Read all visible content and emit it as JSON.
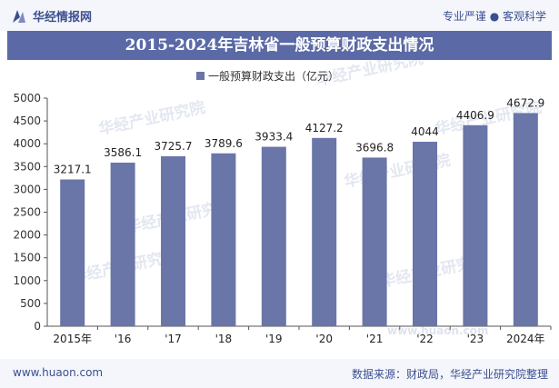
{
  "header": {
    "brand": "华经情报网",
    "tagline": "专业严谨 ● 客观科学"
  },
  "footer": {
    "url": "www.huaon.com",
    "source": "数据来源：财政局，华经产业研究院整理"
  },
  "watermark": {
    "text": "华经产业研究院",
    "url_text": "www.huaon.com"
  },
  "colors": {
    "bar": "#6a75a8",
    "header_band": "#5b6aa6",
    "brand": "#3b4f8f"
  },
  "chart_data": {
    "type": "bar",
    "title": "2015-2024年吉林省一般预算财政支出情况",
    "legend": "一般预算财政支出（亿元）",
    "legend_position": "top-center",
    "categories": [
      "2015年",
      "'16",
      "'17",
      "'18",
      "'19",
      "'20",
      "'21",
      "'22",
      "'23",
      "2024年"
    ],
    "values": [
      3217.1,
      3586.1,
      3725.7,
      3789.6,
      3933.4,
      4127.2,
      3696.8,
      4044,
      4406.9,
      4672.9
    ],
    "value_labels": [
      "3217.1",
      "3586.1",
      "3725.7",
      "3789.6",
      "3933.4",
      "4127.2",
      "3696.8",
      "4044",
      "4406.9",
      "4672.9"
    ],
    "yticks": [
      "0",
      "500",
      "1000",
      "1500",
      "2000",
      "2500",
      "3000",
      "3500",
      "4000",
      "4500",
      "5000"
    ],
    "ylim": [
      0,
      5000
    ],
    "grid": false
  }
}
